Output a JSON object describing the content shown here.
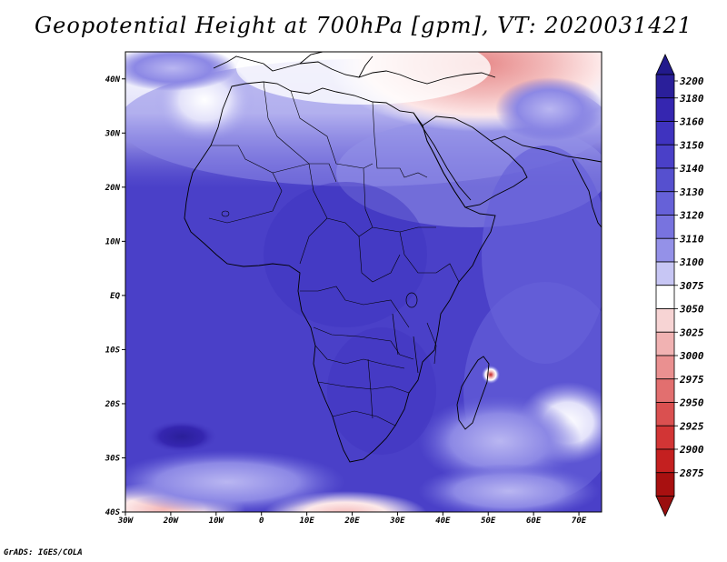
{
  "title": "Geopotential Height at 700hPa [gpm], VT: 2020031421",
  "credit": "GrADS: IGES/COLA",
  "map": {
    "lon_range": [
      -30,
      75
    ],
    "lat_range": [
      -40,
      45
    ],
    "lat_labels": [
      "40N",
      "30N",
      "20N",
      "10N",
      "EQ",
      "10S",
      "20S",
      "30S",
      "40S"
    ],
    "lat_values": [
      40,
      30,
      20,
      10,
      0,
      -10,
      -20,
      -30,
      -40
    ],
    "lon_labels": [
      "30W",
      "20W",
      "10W",
      "0",
      "10E",
      "20E",
      "30E",
      "40E",
      "50E",
      "60E",
      "70E"
    ],
    "lon_values": [
      -30,
      -20,
      -10,
      0,
      10,
      20,
      30,
      40,
      50,
      60,
      70
    ]
  },
  "colorbar": {
    "levels": [
      "3200",
      "3180",
      "3160",
      "3150",
      "3140",
      "3130",
      "3120",
      "3110",
      "3100",
      "3075",
      "3050",
      "3025",
      "3000",
      "2975",
      "2950",
      "2925",
      "2900",
      "2875"
    ],
    "colors": [
      "#2a1f9a",
      "#3526b0",
      "#3f33bf",
      "#4a40c8",
      "#5650cf",
      "#6661d8",
      "#7873df",
      "#9491e8",
      "#c7c6f4",
      "#ffffff",
      "#f7d4d4",
      "#f1b2b2",
      "#ea9090",
      "#e26f6f",
      "#da5050",
      "#d23535",
      "#c42020",
      "#a81010"
    ],
    "top_cap_color": "#221a8c",
    "bottom_cap_color": "#9a0f0f"
  }
}
